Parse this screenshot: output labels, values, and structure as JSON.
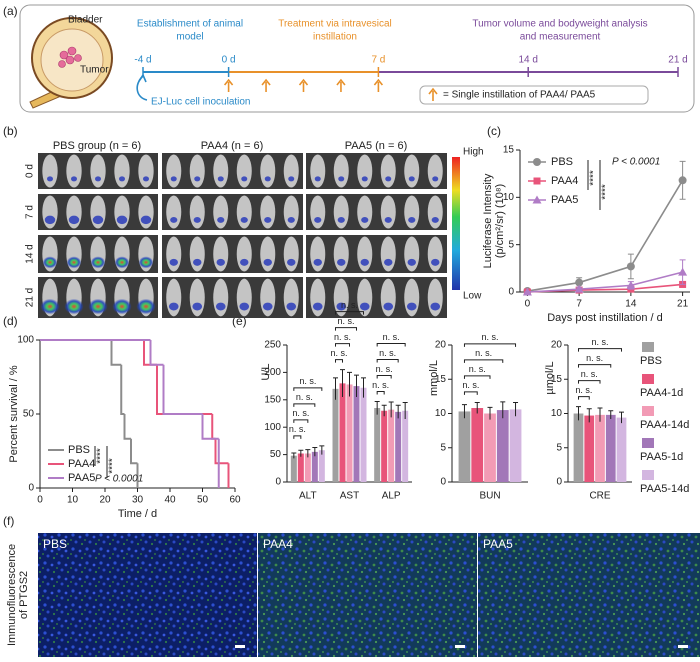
{
  "panel_labels": [
    "(a)",
    "(b)",
    "(c)",
    "(d)",
    "(e)",
    "(f)"
  ],
  "timeline": {
    "bladder_label": "Bladder",
    "tumor_label": "Tumor",
    "phases": [
      [
        "Establishment of animal",
        "model"
      ],
      [
        "Treatment via intravesical",
        "instillation"
      ],
      [
        "Tumor volume and bodyweight analysis",
        "and measurement"
      ]
    ],
    "colors": [
      "#2a8ac8",
      "#e8912a",
      "#7a4a9a"
    ],
    "days": [
      {
        "value": -4,
        "label": "-4 d"
      },
      {
        "value": 0,
        "label": "0 d"
      },
      {
        "value": 7,
        "label": "7 d"
      },
      {
        "value": 14,
        "label": "14 d"
      },
      {
        "value": 21,
        "label": "21 d"
      }
    ],
    "inoculation": "EJ-Luc cell inoculation",
    "legend": "= Single instillation of PAA4/ PAA5"
  },
  "imaging": {
    "groups": [
      "PBS group (n = 6)",
      "PAA4 (n = 6)",
      "PAA5 (n = 6)"
    ],
    "rows": [
      "0 d",
      "7 d",
      "14 d",
      "21 d"
    ],
    "scale_high": "High",
    "scale_low": "Low"
  },
  "chart_data": [
    {
      "type": "line",
      "x": [
        0,
        7,
        14,
        21
      ],
      "xlim": [
        -1,
        22
      ],
      "xticks": [
        0,
        7,
        14,
        21
      ],
      "ylim": [
        0,
        15
      ],
      "yticks": [
        0,
        5,
        10,
        15
      ],
      "xlabel": "Days post instillation / d",
      "ylabel": [
        "Luciferase Intensity",
        "(p/cm²/sr) (10⁸)"
      ],
      "series": [
        {
          "name": "PBS",
          "color": "#8c8c8c",
          "marker": "circle",
          "values": [
            0.1,
            1.0,
            2.7,
            11.8
          ],
          "errors": [
            0.1,
            0.5,
            1.3,
            2.0
          ]
        },
        {
          "name": "PAA4",
          "color": "#e8547a",
          "marker": "square",
          "values": [
            0,
            0.2,
            0.3,
            0.8
          ],
          "errors": [
            0,
            0.1,
            0.2,
            0.3
          ]
        },
        {
          "name": "PAA5",
          "color": "#b07cc6",
          "marker": "triangle",
          "values": [
            0,
            0.3,
            0.7,
            2.1
          ],
          "errors": [
            0,
            0.2,
            0.4,
            1.3
          ]
        }
      ],
      "annotations": [
        "****",
        "****",
        "P < 0.0001"
      ]
    },
    {
      "type": "step",
      "xlim": [
        0,
        60
      ],
      "xticks": [
        0,
        10,
        20,
        30,
        40,
        50,
        60
      ],
      "ylim": [
        0,
        100
      ],
      "yticks": [
        0,
        50,
        100
      ],
      "xlabel": "Time / d",
      "ylabel": "Percent survival / %",
      "series": [
        {
          "name": "PBS",
          "color": "#8c8c8c",
          "x": [
            0,
            22,
            25,
            26,
            28,
            30
          ],
          "values": [
            100,
            83.3,
            50,
            33.3,
            16.7,
            0
          ]
        },
        {
          "name": "PAA4",
          "color": "#e8547a",
          "x": [
            0,
            32,
            36,
            53,
            54,
            58
          ],
          "values": [
            100,
            83.3,
            50,
            33.3,
            16.7,
            0
          ]
        },
        {
          "name": "PAA5",
          "color": "#b07cc6",
          "x": [
            0,
            34,
            38,
            50,
            55
          ],
          "values": [
            100,
            83.3,
            50,
            33.3,
            0
          ]
        }
      ],
      "annotations": [
        "****",
        "****",
        "P < 0.0001"
      ]
    },
    {
      "type": "bar",
      "categories": [
        "ALT",
        "AST",
        "ALP"
      ],
      "ylim": [
        0,
        250
      ],
      "yticks": [
        0,
        50,
        100,
        150,
        200,
        250
      ],
      "ylabel": "U/L",
      "series": [
        {
          "name": "PBS",
          "color": "#a0a0a0",
          "values": [
            48,
            170,
            135
          ],
          "errors": [
            5,
            20,
            12
          ]
        },
        {
          "name": "PAA4-1d",
          "color": "#e8547a",
          "values": [
            52,
            180,
            130
          ],
          "errors": [
            6,
            25,
            10
          ]
        },
        {
          "name": "PAA4-14d",
          "color": "#f29bb5",
          "values": [
            52,
            178,
            132
          ],
          "errors": [
            7,
            22,
            14
          ]
        },
        {
          "name": "PAA5-1d",
          "color": "#a277b8",
          "values": [
            55,
            175,
            128
          ],
          "errors": [
            8,
            20,
            12
          ]
        },
        {
          "name": "PAA5-14d",
          "color": "#d3b6e0",
          "values": [
            58,
            172,
            130
          ],
          "errors": [
            8,
            18,
            15
          ]
        }
      ],
      "annotations": [
        [
          "n. s.",
          "n. s.",
          "n. s.",
          "n. s."
        ],
        [
          "n. s.",
          "n. s.",
          "n. s.",
          "n. s."
        ],
        [
          "n. s.",
          "n. s.",
          "n. s.",
          "n. s."
        ]
      ]
    },
    {
      "type": "bar",
      "categories": [
        "BUN"
      ],
      "ylim": [
        0,
        20
      ],
      "yticks": [
        0,
        5,
        10,
        15,
        20
      ],
      "ylabel": "mmol/L",
      "series": [
        {
          "color": "#a0a0a0",
          "values": [
            10.3
          ],
          "errors": [
            1.0
          ]
        },
        {
          "color": "#e8547a",
          "values": [
            10.8
          ],
          "errors": [
            0.8
          ]
        },
        {
          "color": "#f29bb5",
          "values": [
            10.0
          ],
          "errors": [
            0.9
          ]
        },
        {
          "color": "#a277b8",
          "values": [
            10.5
          ],
          "errors": [
            1.2
          ]
        },
        {
          "color": "#d3b6e0",
          "values": [
            10.6
          ],
          "errors": [
            1.0
          ]
        }
      ],
      "annotations": [
        [
          "n. s.",
          "n. s.",
          "n. s.",
          "n. s."
        ]
      ]
    },
    {
      "type": "bar",
      "categories": [
        "CRE"
      ],
      "ylim": [
        0,
        20
      ],
      "yticks": [
        0,
        5,
        10,
        15,
        20
      ],
      "ylabel": "µmol/L",
      "series": [
        {
          "color": "#a0a0a0",
          "values": [
            10.0
          ],
          "errors": [
            1.0
          ]
        },
        {
          "color": "#e8547a",
          "values": [
            9.7
          ],
          "errors": [
            1.0
          ]
        },
        {
          "color": "#f29bb5",
          "values": [
            9.8
          ],
          "errors": [
            1.0
          ]
        },
        {
          "color": "#a277b8",
          "values": [
            9.8
          ],
          "errors": [
            0.6
          ]
        },
        {
          "color": "#d3b6e0",
          "values": [
            9.4
          ],
          "errors": [
            0.8
          ]
        }
      ],
      "annotations": [
        [
          "n. s.",
          "n. s.",
          "n. s.",
          "n. s."
        ]
      ]
    }
  ],
  "immunofluorescence": {
    "side_label": [
      "Immunofluorescence",
      "of PTGS2"
    ],
    "groups": [
      "PBS",
      "PAA4",
      "PAA5"
    ]
  }
}
